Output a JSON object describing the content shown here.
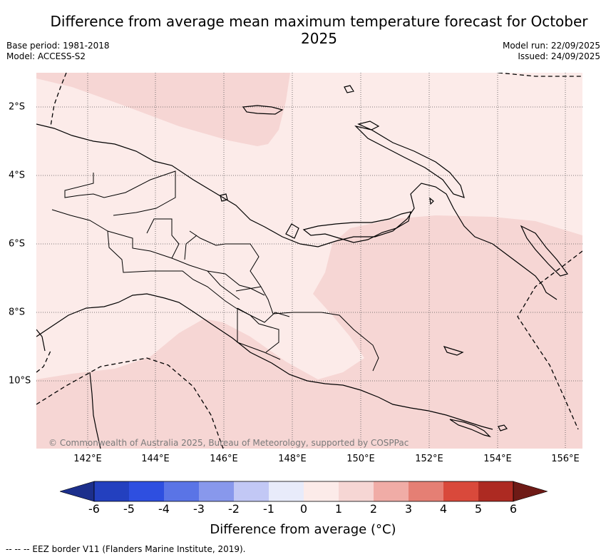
{
  "header": {
    "title": "Difference from average mean maximum temperature forecast for October 2025",
    "base_period": "Base period: 1981-2018",
    "model": "Model: ACCESS-S2",
    "model_run": "Model run: 22/09/2025",
    "issued": "Issued: 24/09/2025"
  },
  "map": {
    "lon_range": [
      140.5,
      156.5
    ],
    "lat_range": [
      -12,
      -1
    ],
    "lon_ticks": [
      "142°E",
      "144°E",
      "146°E",
      "148°E",
      "150°E",
      "152°E",
      "154°E",
      "156°E"
    ],
    "lat_ticks": [
      "2°S",
      "4°S",
      "6°S",
      "8°S",
      "10°S"
    ],
    "credit": "© Commonwealth of Australia 2025, Bureau of Meteorology, supported by COSPPac",
    "colors": {
      "anomaly_0_1": "#fcebe9",
      "anomaly_1_2": "#f6d6d4",
      "coast": "#000000",
      "grid": "#555555"
    }
  },
  "colorbar": {
    "ticks": [
      "-6",
      "-5",
      "-4",
      "-3",
      "-2",
      "-1",
      "0",
      "1",
      "2",
      "3",
      "4",
      "5",
      "6"
    ],
    "colors": [
      "#1c2f8c",
      "#2340bf",
      "#2e4fe0",
      "#5a74e6",
      "#8898ec",
      "#c2c8f5",
      "#e8ebfa",
      "#fcebe9",
      "#f6d6d4",
      "#f0aca6",
      "#e57f74",
      "#d9493b",
      "#ad2a22",
      "#6e1a16"
    ],
    "label": "Difference from average (°C)"
  },
  "footnote": "--  --  -- EEZ border V11 (Flanders Marine Institute, 2019)."
}
